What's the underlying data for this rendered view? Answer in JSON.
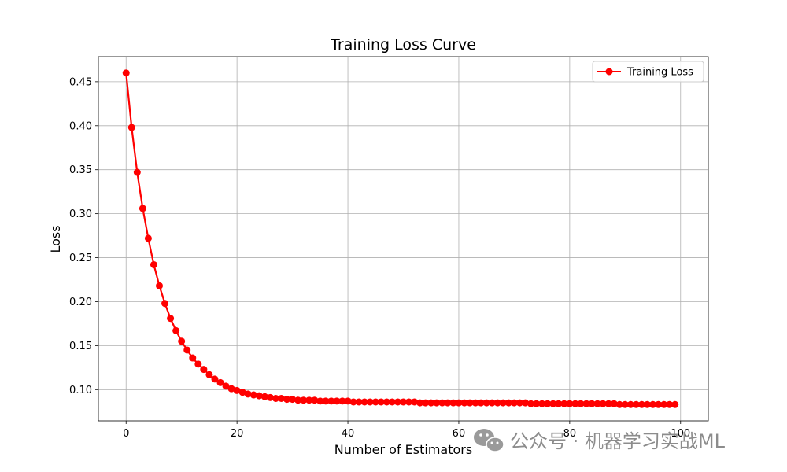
{
  "chart_data": {
    "type": "line",
    "title": "Training Loss Curve",
    "xlabel": "Number of Estimators",
    "ylabel": "Loss",
    "xlim": [
      -5,
      105
    ],
    "ylim": [
      0.0645,
      0.4785
    ],
    "x_ticks": [
      0,
      20,
      40,
      60,
      80,
      100
    ],
    "y_ticks": [
      0.1,
      0.15,
      0.2,
      0.25,
      0.3,
      0.35,
      0.4,
      0.45
    ],
    "x_tick_labels": [
      "0",
      "20",
      "40",
      "60",
      "80",
      "100"
    ],
    "y_tick_labels": [
      "0.10",
      "0.15",
      "0.20",
      "0.25",
      "0.30",
      "0.35",
      "0.40",
      "0.45"
    ],
    "grid": true,
    "legend_position": "top-right",
    "series": [
      {
        "name": "Training Loss",
        "color": "#ff0000",
        "marker": "circle",
        "x": [
          0,
          1,
          2,
          3,
          4,
          5,
          6,
          7,
          8,
          9,
          10,
          11,
          12,
          13,
          14,
          15,
          16,
          17,
          18,
          19,
          20,
          21,
          22,
          23,
          24,
          25,
          26,
          27,
          28,
          29,
          30,
          31,
          32,
          33,
          34,
          35,
          36,
          37,
          38,
          39,
          40,
          41,
          42,
          43,
          44,
          45,
          46,
          47,
          48,
          49,
          50,
          51,
          52,
          53,
          54,
          55,
          56,
          57,
          58,
          59,
          60,
          61,
          62,
          63,
          64,
          65,
          66,
          67,
          68,
          69,
          70,
          71,
          72,
          73,
          74,
          75,
          76,
          77,
          78,
          79,
          80,
          81,
          82,
          83,
          84,
          85,
          86,
          87,
          88,
          89,
          90,
          91,
          92,
          93,
          94,
          95,
          96,
          97,
          98,
          99
        ],
        "y": [
          0.46,
          0.398,
          0.347,
          0.306,
          0.272,
          0.242,
          0.218,
          0.198,
          0.181,
          0.167,
          0.155,
          0.145,
          0.136,
          0.129,
          0.123,
          0.117,
          0.112,
          0.108,
          0.104,
          0.101,
          0.099,
          0.097,
          0.095,
          0.094,
          0.093,
          0.092,
          0.091,
          0.09,
          0.09,
          0.089,
          0.089,
          0.088,
          0.088,
          0.088,
          0.088,
          0.087,
          0.087,
          0.087,
          0.087,
          0.087,
          0.087,
          0.086,
          0.086,
          0.086,
          0.086,
          0.086,
          0.086,
          0.086,
          0.086,
          0.086,
          0.086,
          0.086,
          0.086,
          0.085,
          0.085,
          0.085,
          0.085,
          0.085,
          0.085,
          0.085,
          0.085,
          0.085,
          0.085,
          0.085,
          0.085,
          0.085,
          0.085,
          0.085,
          0.085,
          0.085,
          0.085,
          0.085,
          0.085,
          0.084,
          0.084,
          0.084,
          0.084,
          0.084,
          0.084,
          0.084,
          0.084,
          0.084,
          0.084,
          0.084,
          0.084,
          0.084,
          0.084,
          0.084,
          0.084,
          0.083,
          0.083,
          0.083,
          0.083,
          0.083,
          0.083,
          0.083,
          0.083,
          0.083,
          0.083,
          0.083
        ]
      }
    ]
  },
  "watermark": {
    "text": "公众号 · 机器学习实战ML",
    "icon": "wechat-icon"
  }
}
